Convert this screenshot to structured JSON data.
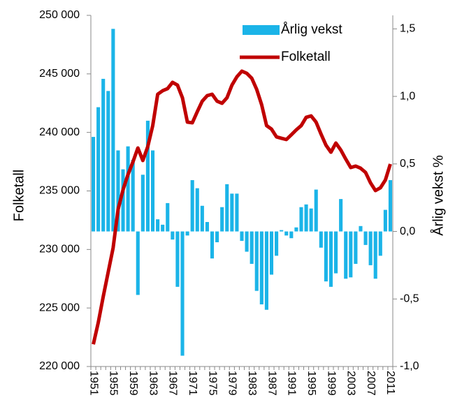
{
  "chart_data": {
    "type": "bar",
    "y_label": "Folketall",
    "y2_label": "Årlig vekst %",
    "categories": [
      "1951",
      null,
      null,
      null,
      "1955",
      null,
      null,
      null,
      "1959",
      null,
      null,
      null,
      "1963",
      null,
      null,
      null,
      "1967",
      null,
      null,
      null,
      "1971",
      null,
      null,
      null,
      "1975",
      null,
      null,
      null,
      "1979",
      null,
      null,
      null,
      "1983",
      null,
      null,
      null,
      "1987",
      null,
      null,
      null,
      "1991",
      null,
      null,
      null,
      "1995",
      null,
      null,
      null,
      "1999",
      null,
      null,
      null,
      "2003",
      null,
      null,
      null,
      "2007",
      null,
      null,
      null,
      "2011"
    ],
    "series": [
      {
        "name": "Årlig vekst",
        "type": "bar",
        "axis": "y2",
        "color": "#1bb4e8",
        "values": [
          0.7,
          0.92,
          1.13,
          1.04,
          1.5,
          0.6,
          0.46,
          0.63,
          0.53,
          -0.47,
          0.42,
          0.82,
          0.6,
          0.09,
          0.05,
          0.21,
          -0.06,
          -0.41,
          -0.92,
          -0.03,
          0.38,
          0.32,
          0.19,
          0.07,
          -0.2,
          -0.08,
          0.18,
          0.35,
          0.28,
          0.28,
          -0.07,
          -0.15,
          -0.24,
          -0.44,
          -0.54,
          -0.58,
          -0.32,
          -0.18,
          0.01,
          -0.03,
          -0.05,
          0.03,
          0.18,
          0.2,
          0.17,
          0.31,
          -0.12,
          -0.37,
          -0.41,
          -0.31,
          0.24,
          -0.35,
          -0.34,
          -0.24,
          0.04,
          -0.1,
          -0.25,
          -0.35,
          -0.18,
          0.16,
          0.38
        ]
      },
      {
        "name": "Folketall",
        "type": "line",
        "axis": "y",
        "color": "#c00000",
        "values": [
          221900,
          223760,
          225970,
          228060,
          230140,
          233420,
          235100,
          236400,
          237480,
          238670,
          237600,
          238790,
          240580,
          243260,
          243560,
          243740,
          244280,
          244040,
          242960,
          240880,
          240820,
          241770,
          242670,
          243140,
          243260,
          242670,
          242490,
          242960,
          244040,
          244750,
          245230,
          245050,
          244630,
          243680,
          242370,
          240580,
          240280,
          239620,
          239500,
          239390,
          239800,
          240220,
          240580,
          241290,
          241410,
          240880,
          239860,
          238910,
          238310,
          239090,
          238490,
          237720,
          237000,
          237120,
          236940,
          236580,
          235690,
          235030,
          235270,
          235930,
          237300
        ]
      }
    ],
    "ylim": [
      220000,
      250000
    ],
    "yticks": [
      {
        "value": 220000,
        "label": "220 000"
      },
      {
        "value": 225000,
        "label": "225 000"
      },
      {
        "value": 230000,
        "label": "230 000"
      },
      {
        "value": 235000,
        "label": "235 000"
      },
      {
        "value": 240000,
        "label": "240 000"
      },
      {
        "value": 245000,
        "label": "245 000"
      },
      {
        "value": 250000,
        "label": "250 000"
      }
    ],
    "y2lim": [
      -1.0,
      1.6
    ],
    "y2ticks": [
      {
        "value": -1.0,
        "label": "-1,0"
      },
      {
        "value": -0.5,
        "label": "-0,5"
      },
      {
        "value": 0.0,
        "label": "0,0"
      },
      {
        "value": 0.5,
        "label": "0,5"
      },
      {
        "value": 1.0,
        "label": "1,0"
      },
      {
        "value": 1.5,
        "label": "1,5"
      }
    ],
    "legend": "top-right"
  }
}
